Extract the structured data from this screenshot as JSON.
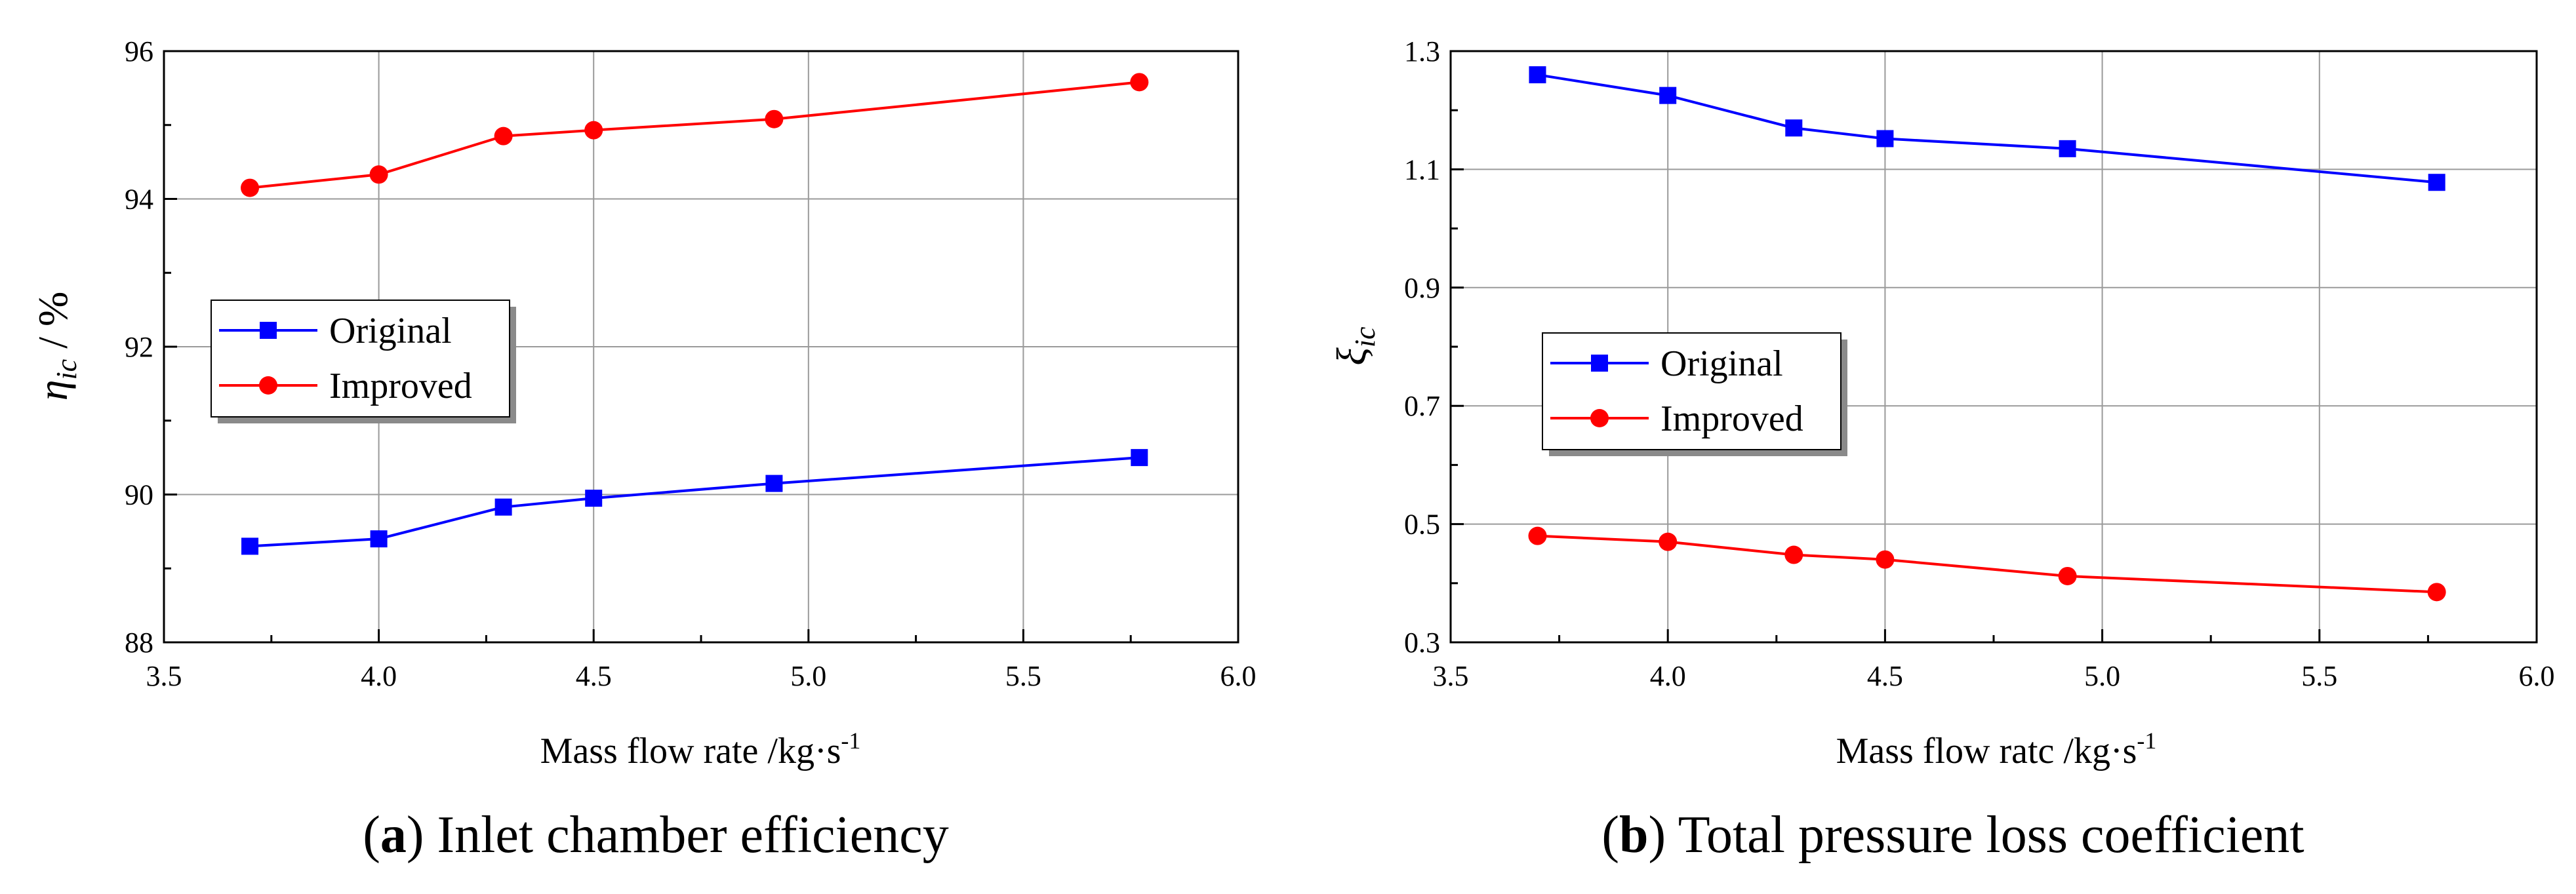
{
  "chart_data": [
    {
      "type": "line",
      "caption_letter": "a",
      "caption_text": " Inlet chamber efficiency",
      "ylabel_symbol": "η",
      "ylabel_sub": "ic",
      "ylabel_unit": " / %",
      "xlabel": "Mass flow rate /kg·s",
      "xlabel_sup": "-1",
      "xlim": [
        3.5,
        6.0
      ],
      "ylim": [
        88,
        96
      ],
      "x_ticks": [
        "3.5",
        "4.0",
        "4.5",
        "5.0",
        "5.5",
        "6.0"
      ],
      "y_ticks": [
        "88",
        "90",
        "92",
        "94",
        "96"
      ],
      "grid": true,
      "legend_position": "center-left",
      "series": [
        {
          "name": "Original",
          "color": "#0000ff",
          "marker": "square",
          "x": [
            3.7,
            4.0,
            4.29,
            4.5,
            4.92,
            5.77
          ],
          "y": [
            89.3,
            89.4,
            89.83,
            89.95,
            90.15,
            90.5
          ]
        },
        {
          "name": "Improved",
          "color": "#ff0000",
          "marker": "circle",
          "x": [
            3.7,
            4.0,
            4.29,
            4.5,
            4.92,
            5.77
          ],
          "y": [
            94.15,
            94.33,
            94.85,
            94.93,
            95.08,
            95.58
          ]
        }
      ]
    },
    {
      "type": "line",
      "caption_letter": "b",
      "caption_text": " Total pressure loss coefficient",
      "ylabel_symbol": "ξ",
      "ylabel_sub": "ic",
      "ylabel_unit": "",
      "xlabel": "Mass flow ratc /kg·s",
      "xlabel_sup": "-1",
      "xlim": [
        3.5,
        6.0
      ],
      "ylim": [
        0.3,
        1.3
      ],
      "x_ticks": [
        "3.5",
        "4.0",
        "4.5",
        "5.0",
        "5.5",
        "6.0"
      ],
      "y_ticks": [
        "0.3",
        "0.5",
        "0.7",
        "0.9",
        "1.1",
        "1.3"
      ],
      "grid": true,
      "legend_position": "center-left",
      "series": [
        {
          "name": "Original",
          "color": "#0000ff",
          "marker": "square",
          "x": [
            3.7,
            4.0,
            4.29,
            4.5,
            4.92,
            5.77
          ],
          "y": [
            1.26,
            1.225,
            1.17,
            1.152,
            1.135,
            1.078
          ]
        },
        {
          "name": "Improved",
          "color": "#ff0000",
          "marker": "circle",
          "x": [
            3.7,
            4.0,
            4.29,
            4.5,
            4.92,
            5.77
          ],
          "y": [
            0.48,
            0.47,
            0.448,
            0.44,
            0.412,
            0.385
          ]
        }
      ]
    }
  ]
}
